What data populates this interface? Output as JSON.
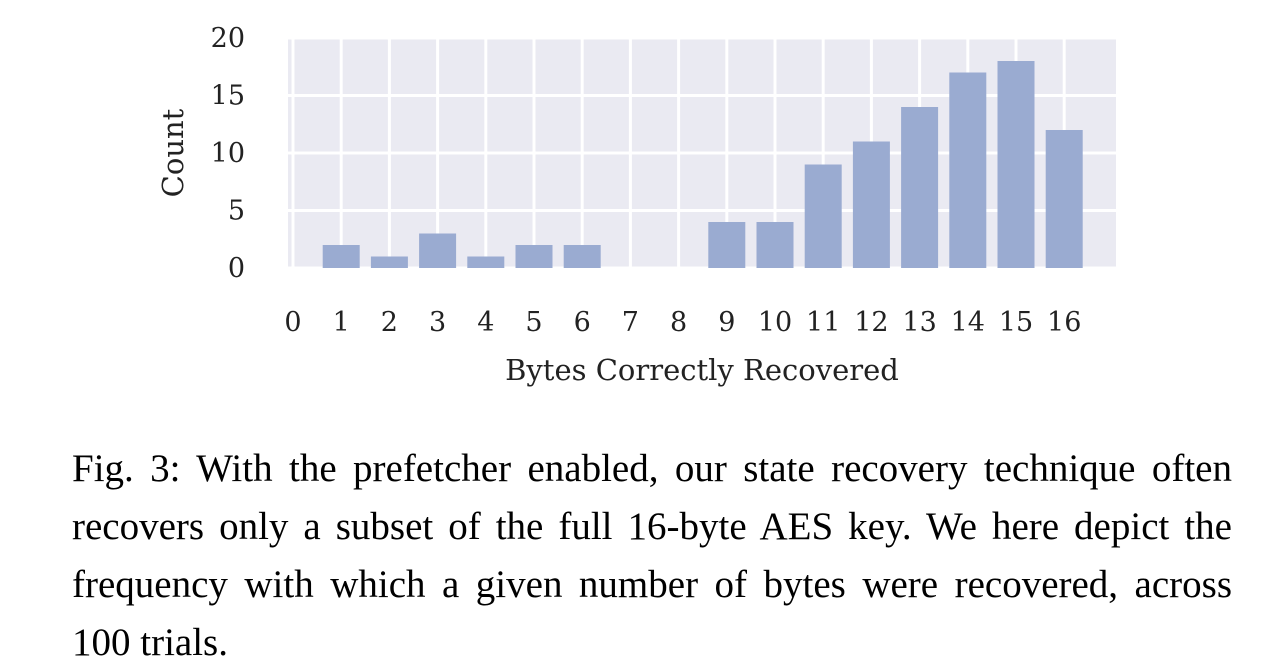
{
  "chart_data": {
    "type": "bar",
    "categories": [
      "0",
      "1",
      "2",
      "3",
      "4",
      "5",
      "6",
      "7",
      "8",
      "9",
      "10",
      "11",
      "12",
      "13",
      "14",
      "15",
      "16"
    ],
    "values": [
      0,
      2,
      1,
      3,
      1,
      2,
      2,
      0,
      0,
      4,
      4,
      9,
      11,
      14,
      17,
      18,
      12
    ],
    "yticks": [
      "0",
      "5",
      "10",
      "15",
      "20"
    ],
    "title": "",
    "xlabel": "Bytes Correctly Recovered",
    "ylabel": "Count",
    "ylim": [
      0,
      20
    ],
    "grid": true,
    "bar_color": "#9aabd1",
    "plot_background": "#eaeaf2"
  },
  "caption": "Fig. 3: With the prefetcher enabled, our state recovery technique often recovers only a subset of the full 16-byte AES key. We here depict the frequency with which a given number of bytes were recovered, across 100 trials."
}
